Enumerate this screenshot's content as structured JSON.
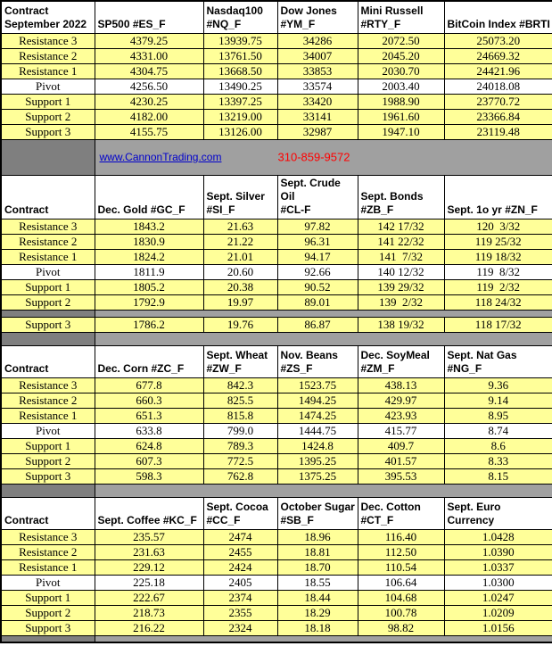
{
  "banner": {
    "link": "www.CannonTrading.com",
    "phone": "310-859-9572"
  },
  "row_labels": [
    "Resistance 3",
    "Resistance 2",
    "Resistance 1",
    "Pivot",
    "Support 1",
    "Support 2",
    "Support 3"
  ],
  "colors": {
    "row_highlight": "#FFFF99",
    "separator": "#A0A0A0",
    "separator_dark": "#7F7F7F",
    "link_blue": "#0000CC",
    "phone_red": "#FF0000",
    "border": "#000000"
  },
  "blocks": [
    {
      "first_header": [
        "Contract",
        "September 2022"
      ],
      "headers": [
        [
          "SP500 #ES_F"
        ],
        [
          "Nasdaq100",
          "#NQ_F"
        ],
        [
          "Dow Jones",
          "#YM_F"
        ],
        [
          "Mini Russell",
          "#RTY_F"
        ],
        [
          "BitCoin Index #BRTI"
        ]
      ],
      "rows": [
        [
          "4379.25",
          "13939.75",
          "34286",
          "2072.50",
          "25073.20"
        ],
        [
          "4331.00",
          "13761.50",
          "34007",
          "2045.20",
          "24669.32"
        ],
        [
          "4304.75",
          "13668.50",
          "33853",
          "2030.70",
          "24421.96"
        ],
        [
          "4256.50",
          "13490.25",
          "33574",
          "2003.40",
          "24018.08"
        ],
        [
          "4230.25",
          "13397.25",
          "33420",
          "1988.90",
          "23770.72"
        ],
        [
          "4182.00",
          "13219.00",
          "33141",
          "1961.60",
          "23366.84"
        ],
        [
          "4155.75",
          "13126.00",
          "32987",
          "1947.10",
          "23119.48"
        ]
      ]
    },
    {
      "first_header": [
        "Contract"
      ],
      "headers": [
        [
          "Dec. Gold #GC_F"
        ],
        [
          "Sept. Silver",
          "#SI_F"
        ],
        [
          "Sept. Crude Oil",
          "#CL-F"
        ],
        [
          "Sept. Bonds",
          "#ZB_F"
        ],
        [
          "Sept. 1o yr  #ZN_F"
        ]
      ],
      "gap_before_last_row": true,
      "rows": [
        [
          "1843.2",
          "21.63",
          "97.82",
          "142 17/32",
          "120  3/32"
        ],
        [
          "1830.9",
          "21.22",
          "96.31",
          "141 22/32",
          "119 25/32"
        ],
        [
          "1824.2",
          "21.01",
          "94.17",
          "141  7/32",
          "119 18/32"
        ],
        [
          "1811.9",
          "20.60",
          "92.66",
          "140 12/32",
          "119  8/32"
        ],
        [
          "1805.2",
          "20.38",
          "90.52",
          "139 29/32",
          "119  2/32"
        ],
        [
          "1792.9",
          "19.97",
          "89.01",
          "139  2/32",
          "118 24/32"
        ],
        [
          "1786.2",
          "19.76",
          "86.87",
          "138 19/32",
          "118 17/32"
        ]
      ]
    },
    {
      "first_header": [
        "Contract"
      ],
      "headers": [
        [
          "Dec. Corn #ZC_F"
        ],
        [
          "Sept.  Wheat",
          "#ZW_F"
        ],
        [
          "Nov. Beans",
          "#ZS_F"
        ],
        [
          "Dec. SoyMeal",
          "#ZM_F"
        ],
        [
          "Sept. Nat Gas",
          "#NG_F"
        ]
      ],
      "rows": [
        [
          "677.8",
          "842.3",
          "1523.75",
          "438.13",
          "9.36"
        ],
        [
          "660.3",
          "825.5",
          "1494.25",
          "429.97",
          "9.14"
        ],
        [
          "651.3",
          "815.8",
          "1474.25",
          "423.93",
          "8.95"
        ],
        [
          "633.8",
          "799.0",
          "1444.75",
          "415.77",
          "8.74"
        ],
        [
          "624.8",
          "789.3",
          "1424.8",
          "409.7",
          "8.6"
        ],
        [
          "607.3",
          "772.5",
          "1395.25",
          "401.57",
          "8.33"
        ],
        [
          "598.3",
          "762.8",
          "1375.25",
          "395.53",
          "8.15"
        ]
      ]
    },
    {
      "first_header": [
        "Contract"
      ],
      "headers": [
        [
          "Sept. Coffee #KC_F"
        ],
        [
          "Sept. Cocoa",
          "#CC_F"
        ],
        [
          "October Sugar",
          "#SB_F"
        ],
        [
          "Dec. Cotton",
          "#CT_F"
        ],
        [
          "Sept.  Euro",
          "Currency"
        ]
      ],
      "rows": [
        [
          "235.57",
          "2474",
          "18.96",
          "116.40",
          "1.0428"
        ],
        [
          "231.63",
          "2455",
          "18.81",
          "112.50",
          "1.0390"
        ],
        [
          "229.12",
          "2424",
          "18.70",
          "110.54",
          "1.0337"
        ],
        [
          "225.18",
          "2405",
          "18.55",
          "106.64",
          "1.0300"
        ],
        [
          "222.67",
          "2374",
          "18.44",
          "104.68",
          "1.0247"
        ],
        [
          "218.73",
          "2355",
          "18.29",
          "100.78",
          "1.0209"
        ],
        [
          "216.22",
          "2324",
          "18.18",
          "98.82",
          "1.0156"
        ]
      ]
    }
  ]
}
